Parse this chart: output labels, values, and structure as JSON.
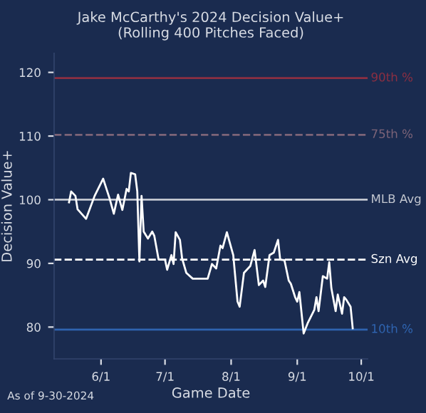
{
  "chart_data": {
    "type": "line",
    "title": "Jake McCarthy's 2024 Decision Value+\n(Rolling 400 Pitches Faced)",
    "xlabel": "Game Date",
    "ylabel": "Decision Value+",
    "annotations": [
      "As of 9-30-2024"
    ],
    "x": [
      "2024-05-17",
      "2024-05-18",
      "2024-05-20",
      "2024-05-21",
      "2024-05-25",
      "2024-05-29",
      "2024-06-02",
      "2024-06-05",
      "2024-06-07",
      "2024-06-09",
      "2024-06-11",
      "2024-06-13",
      "2024-06-14",
      "2024-06-15",
      "2024-06-17",
      "2024-06-18",
      "2024-06-19",
      "2024-06-20",
      "2024-06-21",
      "2024-06-23",
      "2024-06-25",
      "2024-06-26",
      "2024-06-28",
      "2024-07-01",
      "2024-07-02",
      "2024-07-04",
      "2024-07-05",
      "2024-07-06",
      "2024-07-08",
      "2024-07-09",
      "2024-07-11",
      "2024-07-14",
      "2024-07-21",
      "2024-07-23",
      "2024-07-25",
      "2024-07-27",
      "2024-07-28",
      "2024-07-30",
      "2024-08-02",
      "2024-08-04",
      "2024-08-05",
      "2024-08-07",
      "2024-08-10",
      "2024-08-12",
      "2024-08-14",
      "2024-08-16",
      "2024-08-17",
      "2024-08-19",
      "2024-08-21",
      "2024-08-23",
      "2024-08-24",
      "2024-08-26",
      "2024-08-28",
      "2024-08-29",
      "2024-08-31",
      "2024-09-01",
      "2024-09-02",
      "2024-09-04",
      "2024-09-06",
      "2024-09-09",
      "2024-09-10",
      "2024-09-11",
      "2024-09-13",
      "2024-09-15",
      "2024-09-16",
      "2024-09-17",
      "2024-09-19",
      "2024-09-20",
      "2024-09-22",
      "2024-09-23",
      "2024-09-24",
      "2024-09-26",
      "2024-09-27"
    ],
    "series": [
      {
        "color": "#ffffff",
        "values": [
          99.6,
          101.3,
          100.6,
          98.5,
          97.0,
          100.6,
          103.3,
          100.2,
          97.8,
          100.8,
          98.4,
          101.7,
          101.3,
          104.2,
          104.0,
          101.3,
          90.3,
          100.6,
          95.0,
          93.9,
          95.0,
          94.3,
          90.6,
          90.6,
          89.0,
          91.3,
          89.9,
          94.9,
          93.7,
          90.8,
          88.5,
          87.6,
          87.6,
          89.9,
          89.2,
          92.8,
          92.4,
          94.9,
          91.3,
          84.0,
          83.2,
          88.5,
          89.6,
          92.1,
          86.6,
          87.3,
          86.3,
          91.3,
          91.7,
          93.7,
          90.6,
          90.5,
          87.3,
          86.8,
          84.7,
          84.0,
          85.5,
          79.0,
          80.7,
          82.7,
          84.7,
          82.5,
          88.0,
          87.6,
          90.2,
          86.1,
          82.5,
          85.1,
          82.1,
          84.7,
          84.3,
          83.2,
          79.8
        ]
      }
    ],
    "ref_lines": [
      {
        "axis": "y",
        "value": 119.1,
        "label": "90th %",
        "color": "#8c2f42",
        "line_style": "solid"
      },
      {
        "axis": "y",
        "value": 110.2,
        "label": "75th %",
        "color": "#7d6478",
        "line_style": "dashed"
      },
      {
        "axis": "y",
        "value": 100,
        "label": "MLB Avg",
        "color": "#c3c7d0",
        "line_style": "solid"
      },
      {
        "axis": "y",
        "value": 90.6,
        "label": "Szn Avg",
        "color": "#ffffff",
        "line_style": "dashed"
      },
      {
        "axis": "y",
        "value": 79.6,
        "label": "10th %",
        "color": "#2f64b0",
        "line_style": "solid"
      }
    ],
    "xlim": [
      "2024-05-10",
      "2024-10-04"
    ],
    "xticks": [
      {
        "value": "2024-06-01",
        "label": "6/1"
      },
      {
        "value": "2024-07-01",
        "label": "7/1"
      },
      {
        "value": "2024-08-01",
        "label": "8/1"
      },
      {
        "value": "2024-09-01",
        "label": "9/1"
      },
      {
        "value": "2024-10-01",
        "label": "10/1"
      }
    ],
    "ylim": [
      75,
      123
    ],
    "yticks": [
      80,
      90,
      100,
      110,
      120
    ],
    "grid": false,
    "legend": false,
    "marker": "none",
    "line_style": "solid"
  }
}
